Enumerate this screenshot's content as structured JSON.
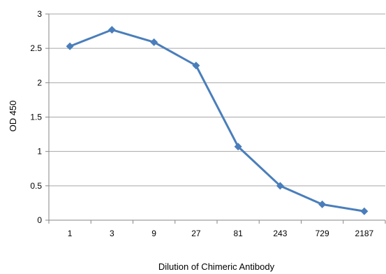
{
  "chart_data": {
    "type": "line",
    "title": "",
    "xlabel": "Dilution of Chimeric Antibody",
    "ylabel": "OD 450",
    "categories": [
      "1",
      "3",
      "9",
      "27",
      "81",
      "243",
      "729",
      "2187"
    ],
    "series": [
      {
        "values": [
          2.53,
          2.77,
          2.59,
          2.25,
          1.07,
          0.5,
          0.23,
          0.13
        ],
        "color": "#4a7ebb",
        "marker": "diamond"
      }
    ],
    "ylim": [
      0,
      3
    ],
    "yticks": [
      "0",
      "0.5",
      "1",
      "1.5",
      "2",
      "2.5",
      "3"
    ],
    "grid": true,
    "legend": "none"
  },
  "colors": {
    "line": "#4a7ebb",
    "grid": "#a6a6a6",
    "axis": "#868686"
  }
}
